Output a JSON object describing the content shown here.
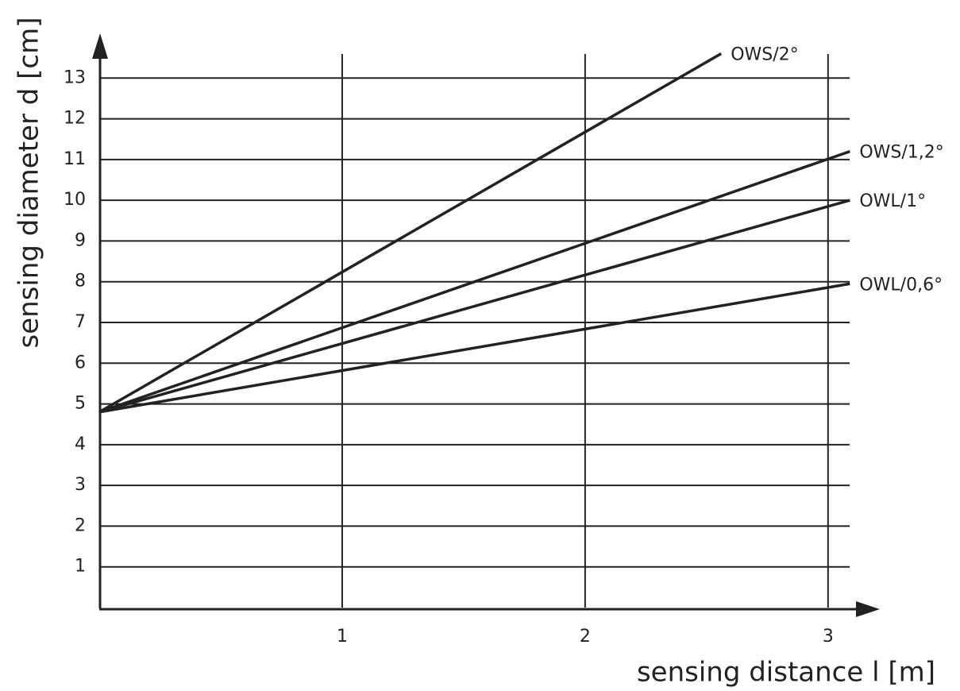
{
  "chart_data": {
    "type": "line",
    "x_label": "sensing distance l [m]",
    "y_label": "sensing diameter d [cm]",
    "xlim": [
      0,
      3.2
    ],
    "ylim": [
      0,
      14
    ],
    "xticks": [
      1,
      2,
      3
    ],
    "yticks": [
      1,
      2,
      3,
      4,
      5,
      6,
      7,
      8,
      9,
      10,
      11,
      12,
      13
    ],
    "grid": true,
    "series": [
      {
        "name": "OWS/2°",
        "color": "#222222",
        "x": [
          0,
          2.56
        ],
        "values": [
          4.8,
          13.6
        ]
      },
      {
        "name": "OWS/1,2°",
        "color": "#222222",
        "x": [
          0,
          3.09
        ],
        "values": [
          4.8,
          11.2
        ]
      },
      {
        "name": "OWL/1°",
        "color": "#222222",
        "x": [
          0,
          3.09
        ],
        "values": [
          4.8,
          10.0
        ]
      },
      {
        "name": "OWL/0,6°",
        "color": "#222222",
        "x": [
          0,
          3.09
        ],
        "values": [
          4.8,
          7.95
        ]
      }
    ]
  }
}
